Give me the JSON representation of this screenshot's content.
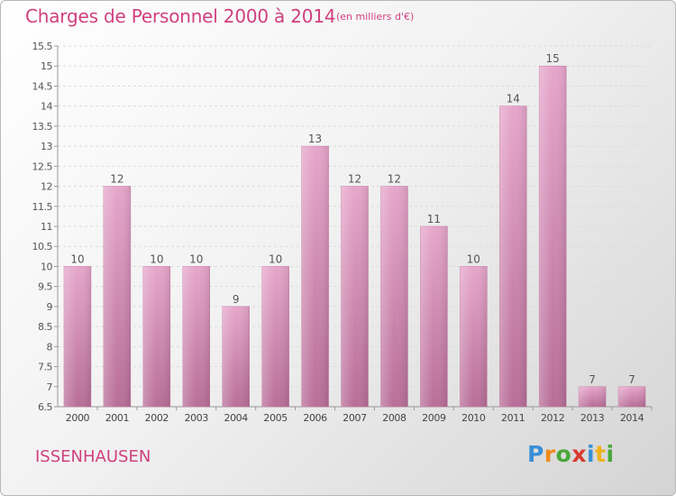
{
  "header": {
    "title": "Charges de Personnel 2000 à 2014",
    "subtitle": "(en milliers d'€)"
  },
  "footer": {
    "commune": "ISSENHAUSEN"
  },
  "logo": {
    "text": "Proxiti",
    "letters": [
      {
        "char": "P",
        "color": "#3a8fd6"
      },
      {
        "char": "r",
        "color": "#f08a1c"
      },
      {
        "char": "o",
        "color": "#4aa83a"
      },
      {
        "char": "x",
        "color": "#d93a2f"
      },
      {
        "char": "i",
        "color": "#3a8fd6"
      },
      {
        "char": "t",
        "color": "#f0b31c"
      },
      {
        "char": "i",
        "color": "#4aa83a"
      }
    ]
  },
  "chart_data": {
    "type": "bar",
    "categories": [
      "2000",
      "2001",
      "2002",
      "2003",
      "2004",
      "2005",
      "2006",
      "2007",
      "2008",
      "2009",
      "2010",
      "2011",
      "2012",
      "2013",
      "2014"
    ],
    "values": [
      10,
      12,
      10,
      10,
      9,
      10,
      13,
      12,
      12,
      11,
      10,
      14,
      15,
      7,
      7
    ],
    "ylim": [
      6.5,
      15.5
    ],
    "yticks": [
      "6.5",
      "7",
      "7.5",
      "8",
      "8.5",
      "9",
      "9.5",
      "10",
      "10.5",
      "11",
      "11.5",
      "12",
      "12.5",
      "13",
      "13.5",
      "14",
      "14.5",
      "15",
      "15.5"
    ],
    "grid": true,
    "bar_color": "#d47fae",
    "title": "Charges de Personnel 2000 à 2014",
    "xlabel": "",
    "ylabel": ""
  }
}
